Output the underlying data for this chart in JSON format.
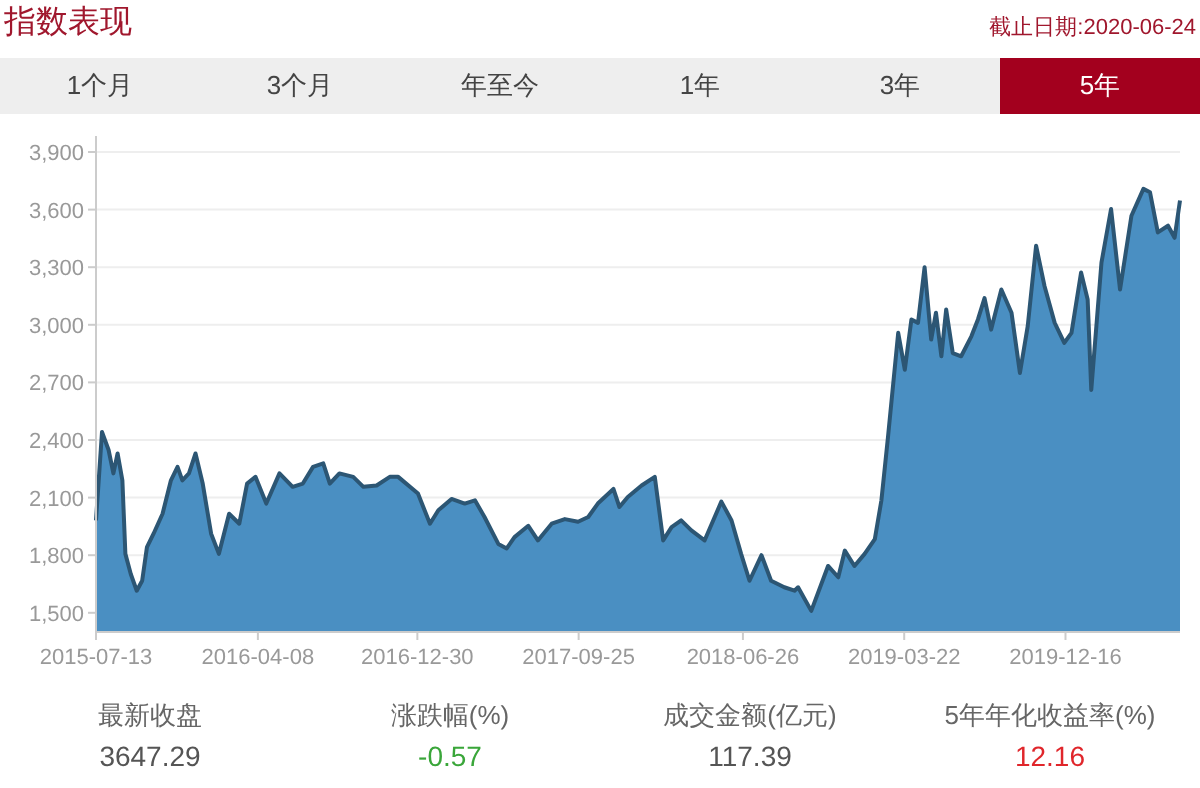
{
  "chart_data": [
    {
      "type": "area",
      "title": "指数表现",
      "subtitle": "截止日期:2020-06-24",
      "annotations": [
        "1个月",
        "3个月",
        "年至今",
        "1年",
        "3年",
        "5年"
      ],
      "x": [
        "2015-07-13",
        "2015-07-23",
        "2015-08-03",
        "2015-08-11",
        "2015-08-18",
        "2015-08-26",
        "2015-08-31",
        "2015-09-09",
        "2015-09-19",
        "2015-09-28",
        "2015-10-06",
        "2015-10-17",
        "2015-11-01",
        "2015-11-15",
        "2015-11-26",
        "2015-12-04",
        "2015-12-15",
        "2015-12-26",
        "2016-01-07",
        "2016-01-21",
        "2016-02-03",
        "2016-02-20",
        "2016-03-08",
        "2016-03-21",
        "2016-04-04",
        "2016-04-22",
        "2016-05-14",
        "2016-06-05",
        "2016-06-22",
        "2016-07-09",
        "2016-07-26",
        "2016-08-06",
        "2016-08-22",
        "2016-09-14",
        "2016-10-01",
        "2016-10-23",
        "2016-11-14",
        "2016-11-28",
        "2016-12-31",
        "2017-01-20",
        "2017-02-03",
        "2017-02-25",
        "2017-03-19",
        "2017-04-05",
        "2017-04-21",
        "2017-05-14",
        "2017-05-28",
        "2017-06-10",
        "2017-07-03",
        "2017-07-19",
        "2017-08-11",
        "2017-09-02",
        "2017-09-24",
        "2017-10-11",
        "2017-10-27",
        "2017-11-22",
        "2017-12-02",
        "2017-12-16",
        "2018-01-08",
        "2018-01-30",
        "2018-02-13",
        "2018-02-27",
        "2018-03-15",
        "2018-04-01",
        "2018-04-23",
        "2018-05-21",
        "2018-06-07",
        "2018-06-23",
        "2018-07-07",
        "2018-07-27",
        "2018-08-12",
        "2018-09-03",
        "2018-09-20",
        "2018-09-26",
        "2018-10-18",
        "2018-11-15",
        "2018-12-02",
        "2018-12-13",
        "2018-12-29",
        "2019-01-15",
        "2019-02-01",
        "2019-02-12",
        "2019-02-23",
        "2019-03-12",
        "2019-03-23",
        "2019-04-03",
        "2019-04-14",
        "2019-04-25",
        "2019-05-06",
        "2019-05-14",
        "2019-05-23",
        "2019-05-31",
        "2019-06-11",
        "2019-06-25",
        "2019-07-12",
        "2019-07-23",
        "2019-08-03",
        "2019-08-14",
        "2019-08-31",
        "2019-09-17",
        "2019-10-01",
        "2019-10-14",
        "2019-10-28",
        "2019-11-11",
        "2019-11-28",
        "2019-12-14",
        "2019-12-26",
        "2020-01-11",
        "2020-01-22",
        "2020-01-28",
        "2020-02-14",
        "2020-03-01",
        "2020-03-16",
        "2020-04-04",
        "2020-04-24",
        "2020-05-05",
        "2020-05-18",
        "2020-06-04",
        "2020-06-15",
        "2020-06-24"
      ],
      "series": [
        {
          "color": "#4a8fc2",
          "values": [
            1981,
            2442,
            2348,
            2226,
            2330,
            2190,
            1807,
            1702,
            1615,
            1667,
            1842,
            1912,
            2016,
            2190,
            2260,
            2190,
            2226,
            2330,
            2173,
            1912,
            1807,
            2016,
            1964,
            2173,
            2208,
            2069,
            2226,
            2156,
            2173,
            2260,
            2278,
            2173,
            2226,
            2208,
            2156,
            2163,
            2208,
            2208,
            2121,
            1964,
            2034,
            2093,
            2069,
            2086,
            1999,
            1859,
            1835,
            1894,
            1953,
            1877,
            1964,
            1988,
            1974,
            1999,
            2069,
            2145,
            2051,
            2103,
            2163,
            2208,
            1877,
            1946,
            1981,
            1929,
            1877,
            2079,
            1981,
            1807,
            1667,
            1800,
            1667,
            1633,
            1615,
            1633,
            1510,
            1744,
            1685,
            1824,
            1744,
            1807,
            1884,
            2086,
            2417,
            2958,
            2766,
            3028,
            3010,
            3300,
            2923,
            3063,
            2836,
            3080,
            2853,
            2836,
            2940,
            3028,
            3139,
            2975,
            3184,
            3063,
            2749,
            2993,
            3412,
            3202,
            3010,
            2906,
            2958,
            3272,
            3132,
            2661,
            3324,
            3603,
            3184,
            3568,
            3708,
            3690,
            3481,
            3516,
            3453,
            3647
          ]
        }
      ],
      "xlim": [
        "2015-07-13",
        "2020-06-24"
      ],
      "xticks": [
        "2015-07-13",
        "2016-04-08",
        "2016-12-30",
        "2017-09-25",
        "2018-06-26",
        "2019-03-22",
        "2019-12-16"
      ],
      "ylim": [
        1400,
        3900
      ],
      "yticks": [
        {
          "value": 1500,
          "label": "1,500"
        },
        {
          "value": 1800,
          "label": "1,800"
        },
        {
          "value": 2100,
          "label": "2,100"
        },
        {
          "value": 2400,
          "label": "2,400"
        },
        {
          "value": 2700,
          "label": "2,700"
        },
        {
          "value": 3000,
          "label": "3,000"
        },
        {
          "value": 3300,
          "label": "3,300"
        },
        {
          "value": 3600,
          "label": "3,600"
        },
        {
          "value": 3900,
          "label": "3,900"
        }
      ],
      "grid": "y",
      "marker": "none",
      "line_style": "solid"
    },
    {
      "type": "other",
      "categories": [
        "最新收盘",
        "涨跌幅(%)",
        "成交金额(亿元)",
        "5年年化收益率(%)"
      ],
      "values": [
        3647.29,
        -0.57,
        117.39,
        12.16
      ],
      "colors": [
        "#555555",
        "#3aa63a",
        "#555555",
        "#e0262b"
      ],
      "data_labels": true
    }
  ]
}
